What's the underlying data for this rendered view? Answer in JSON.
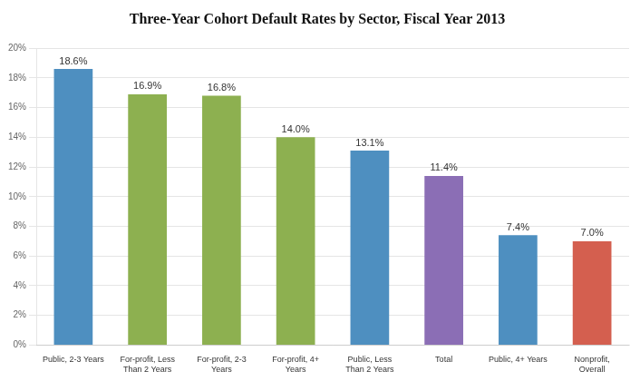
{
  "chart_data": {
    "type": "bar",
    "title": "Three-Year Cohort Default Rates by Sector, Fiscal Year 2013",
    "categories": [
      "Public, 2-3 Years",
      "For-profit, Less\nThan 2 Years",
      "For-profit, 2-3\nYears",
      "For-profit, 4+\nYears",
      "Public, Less\nThan 2 Years",
      "Total",
      "Public, 4+ Years",
      "Nonprofit,\nOverall"
    ],
    "values": [
      18.6,
      16.9,
      16.8,
      14.0,
      13.1,
      11.4,
      7.4,
      7.0
    ],
    "value_labels": [
      "18.6%",
      "16.9%",
      "16.8%",
      "14.0%",
      "13.1%",
      "11.4%",
      "7.4%",
      "7.0%"
    ],
    "colors": [
      "#4E8FC0",
      "#8DB050",
      "#8DB050",
      "#8DB050",
      "#4E8FC0",
      "#8B6EB5",
      "#4E8FC0",
      "#D45F4F"
    ],
    "ylim": [
      0,
      20
    ],
    "yticks": [
      {
        "value": 0,
        "label": "0%"
      },
      {
        "value": 2,
        "label": "2%"
      },
      {
        "value": 4,
        "label": "4%"
      },
      {
        "value": 6,
        "label": "6%"
      },
      {
        "value": 8,
        "label": "8%"
      },
      {
        "value": 10,
        "label": "10%"
      },
      {
        "value": 12,
        "label": "12%"
      },
      {
        "value": 14,
        "label": "14%"
      },
      {
        "value": 16,
        "label": "16%"
      },
      {
        "value": 18,
        "label": "18%"
      },
      {
        "value": 20,
        "label": "20%"
      }
    ],
    "grid": true,
    "data_labels": true
  }
}
